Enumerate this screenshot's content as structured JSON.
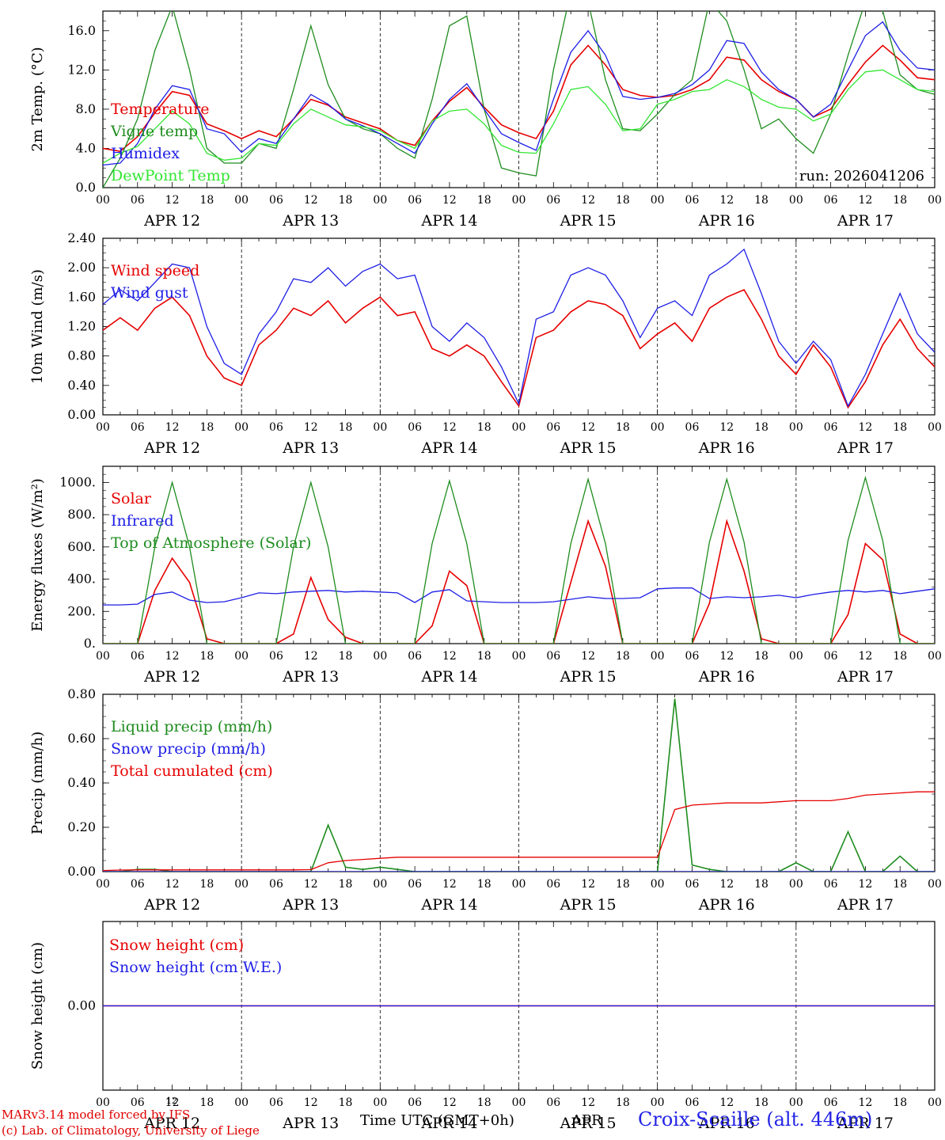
{
  "footer": {
    "model_line": "MARv3.14 model forced by IFS",
    "credit_line": "(c) Lab. of Climatology, University of Liege",
    "superscript": "12",
    "time_label": "Time UTC (GMT+0h)",
    "month_label": "APR",
    "station": "Croix-Scaille (alt. 446m)"
  },
  "colors": {
    "red": "#e60000",
    "green": "#1e8c1e",
    "blue": "#1e1ee6",
    "light_green": "#33e633"
  },
  "x_axis": {
    "start": "2026-04-12 00:00 UTC",
    "end": "2026-04-18 00:00 UTC",
    "hour_ticks": [
      "00",
      "06",
      "12",
      "18"
    ],
    "day_labels": [
      "APR 12",
      "APR 13",
      "APR 14",
      "APR 15",
      "APR 16",
      "APR 17"
    ]
  },
  "chart_data": [
    {
      "type": "line",
      "ylabel": "2m Temp. (°C)",
      "ylim": [
        0,
        18
      ],
      "yticks": [
        "0.0",
        "4.0",
        "8.0",
        "12.0",
        "16.0"
      ],
      "annotation": "run: 2026041206",
      "x_hours": [
        0,
        3,
        6,
        9,
        12,
        15,
        18,
        21,
        24,
        27,
        30,
        33,
        36,
        39,
        42,
        45,
        48,
        51,
        54,
        57,
        60,
        63,
        66,
        69,
        72,
        75,
        78,
        81,
        84,
        87,
        90,
        93,
        96,
        99,
        102,
        105,
        108,
        111,
        114,
        117,
        120,
        123,
        126,
        129,
        132,
        135,
        138,
        141,
        144
      ],
      "series": [
        {
          "name": "Temperature",
          "color": "red",
          "values": [
            4.0,
            3.7,
            5.2,
            7.6,
            9.8,
            9.4,
            6.5,
            5.8,
            5.0,
            5.8,
            5.2,
            7.0,
            9.0,
            8.4,
            7.2,
            6.6,
            6.0,
            4.8,
            4.3,
            6.8,
            8.8,
            10.2,
            8.2,
            6.4,
            5.6,
            5.0,
            7.8,
            12.5,
            14.5,
            12.5,
            10.0,
            9.4,
            9.2,
            9.4,
            10.0,
            11.0,
            13.3,
            13.0,
            11.0,
            9.8,
            9.0,
            7.2,
            8.0,
            10.5,
            12.8,
            14.5,
            13.0,
            11.2,
            11.0
          ]
        },
        {
          "name": "Vigne temp",
          "color": "green",
          "values": [
            0.0,
            3.0,
            7.0,
            14.0,
            18.5,
            12.0,
            4.0,
            2.5,
            2.5,
            4.5,
            4.0,
            10.0,
            16.5,
            10.5,
            7.0,
            6.0,
            5.5,
            4.0,
            3.0,
            9.0,
            16.5,
            17.5,
            8.0,
            2.0,
            1.5,
            1.2,
            12.0,
            20.0,
            19.0,
            11.0,
            6.0,
            5.8,
            7.5,
            9.5,
            11.0,
            19.0,
            17.0,
            12.0,
            6.0,
            7.0,
            5.0,
            3.5,
            7.5,
            13.5,
            19.0,
            18.0,
            11.5,
            10.0,
            9.5
          ]
        },
        {
          "name": "Humidex",
          "color": "blue",
          "values": [
            2.3,
            2.5,
            4.5,
            8.0,
            10.4,
            10.0,
            6.0,
            5.5,
            3.6,
            5.0,
            4.5,
            7.0,
            9.5,
            8.5,
            7.0,
            6.3,
            5.5,
            4.5,
            3.5,
            6.5,
            9.0,
            10.6,
            8.0,
            5.5,
            4.6,
            3.8,
            9.0,
            13.8,
            16.0,
            13.5,
            9.3,
            9.0,
            9.2,
            9.6,
            10.5,
            12.0,
            15.0,
            14.7,
            11.8,
            10.0,
            9.0,
            7.2,
            8.5,
            12.0,
            15.5,
            16.9,
            14.0,
            12.2,
            12.0
          ]
        },
        {
          "name": "DewPoint Temp",
          "color": "light_green",
          "values": [
            2.5,
            3.5,
            4.2,
            6.0,
            7.8,
            6.5,
            3.5,
            2.8,
            3.0,
            4.5,
            4.3,
            6.5,
            8.0,
            7.2,
            6.4,
            6.2,
            5.8,
            4.8,
            4.0,
            6.8,
            7.8,
            8.0,
            6.5,
            4.3,
            3.6,
            3.5,
            6.5,
            10.0,
            10.3,
            8.5,
            5.8,
            6.0,
            8.5,
            9.0,
            9.8,
            10.0,
            11.0,
            10.3,
            9.0,
            8.2,
            8.0,
            6.8,
            7.5,
            10.0,
            11.8,
            12.0,
            11.0,
            10.0,
            9.8
          ]
        }
      ]
    },
    {
      "type": "line",
      "ylabel": "10m Wind (m/s)",
      "ylim": [
        0,
        2.4
      ],
      "yticks": [
        "0.00",
        "0.40",
        "0.80",
        "1.20",
        "1.60",
        "2.00",
        "2.40"
      ],
      "x_hours": [
        0,
        3,
        6,
        9,
        12,
        15,
        18,
        21,
        24,
        27,
        30,
        33,
        36,
        39,
        42,
        45,
        48,
        51,
        54,
        57,
        60,
        63,
        66,
        69,
        72,
        75,
        78,
        81,
        84,
        87,
        90,
        93,
        96,
        99,
        102,
        105,
        108,
        111,
        114,
        117,
        120,
        123,
        126,
        129,
        132,
        135,
        138,
        141,
        144
      ],
      "series": [
        {
          "name": "Wind speed",
          "color": "red",
          "values": [
            1.15,
            1.32,
            1.15,
            1.45,
            1.6,
            1.35,
            0.8,
            0.5,
            0.4,
            0.95,
            1.15,
            1.45,
            1.35,
            1.55,
            1.25,
            1.45,
            1.6,
            1.35,
            1.4,
            0.9,
            0.8,
            0.95,
            0.8,
            0.45,
            0.12,
            1.05,
            1.15,
            1.4,
            1.55,
            1.5,
            1.35,
            0.9,
            1.1,
            1.25,
            1.0,
            1.45,
            1.6,
            1.7,
            1.3,
            0.8,
            0.55,
            0.95,
            0.65,
            0.1,
            0.45,
            0.95,
            1.3,
            0.9,
            0.65
          ]
        },
        {
          "name": "Wind gust",
          "color": "blue",
          "values": [
            1.5,
            1.7,
            1.55,
            1.8,
            2.05,
            2.0,
            1.2,
            0.7,
            0.55,
            1.1,
            1.4,
            1.85,
            1.8,
            2.0,
            1.75,
            1.95,
            2.05,
            1.85,
            1.9,
            1.2,
            1.0,
            1.25,
            1.05,
            0.65,
            0.15,
            1.3,
            1.4,
            1.9,
            2.0,
            1.9,
            1.55,
            1.05,
            1.45,
            1.55,
            1.35,
            1.9,
            2.05,
            2.25,
            1.65,
            1.0,
            0.7,
            1.0,
            0.75,
            0.12,
            0.55,
            1.1,
            1.65,
            1.1,
            0.85
          ]
        }
      ]
    },
    {
      "type": "line",
      "ylabel": "Energy fluxes (W/m²)",
      "ylim": [
        0,
        1100
      ],
      "yticks": [
        "0.",
        "200.",
        "400.",
        "600.",
        "800.",
        "1000."
      ],
      "x_hours": [
        0,
        3,
        6,
        9,
        12,
        15,
        18,
        21,
        24,
        27,
        30,
        33,
        36,
        39,
        42,
        45,
        48,
        51,
        54,
        57,
        60,
        63,
        66,
        69,
        72,
        75,
        78,
        81,
        84,
        87,
        90,
        93,
        96,
        99,
        102,
        105,
        108,
        111,
        114,
        117,
        120,
        123,
        126,
        129,
        132,
        135,
        138,
        141,
        144
      ],
      "series": [
        {
          "name": "Solar",
          "color": "red",
          "values": [
            0,
            0,
            0,
            330,
            530,
            380,
            30,
            0,
            0,
            0,
            0,
            60,
            410,
            150,
            40,
            0,
            0,
            0,
            0,
            110,
            450,
            360,
            0,
            0,
            0,
            0,
            0,
            380,
            760,
            480,
            0,
            0,
            0,
            0,
            0,
            250,
            760,
            450,
            30,
            0,
            0,
            0,
            0,
            180,
            620,
            520,
            60,
            0,
            0
          ]
        },
        {
          "name": "Infrared",
          "color": "blue",
          "values": [
            240,
            240,
            245,
            305,
            320,
            270,
            255,
            260,
            285,
            315,
            310,
            320,
            325,
            330,
            320,
            325,
            320,
            315,
            255,
            320,
            335,
            265,
            260,
            255,
            255,
            255,
            260,
            275,
            290,
            280,
            280,
            285,
            340,
            345,
            345,
            280,
            290,
            285,
            290,
            300,
            285,
            305,
            320,
            330,
            320,
            330,
            310,
            325,
            340
          ]
        },
        {
          "name": "Top of Atmosphere (Solar)",
          "color": "green",
          "values": [
            0,
            0,
            0,
            600,
            1000,
            600,
            0,
            0,
            0,
            0,
            0,
            600,
            1000,
            600,
            0,
            0,
            0,
            0,
            0,
            620,
            1010,
            620,
            0,
            0,
            0,
            0,
            0,
            620,
            1020,
            620,
            0,
            0,
            0,
            0,
            0,
            630,
            1020,
            630,
            0,
            0,
            0,
            0,
            0,
            640,
            1030,
            640,
            0,
            0,
            0
          ]
        }
      ]
    },
    {
      "type": "line",
      "ylabel": "Precip (mm/h)",
      "ylim": [
        0,
        0.8
      ],
      "yticks": [
        "0.00",
        "0.20",
        "0.40",
        "0.60",
        "0.80"
      ],
      "x_hours": [
        0,
        3,
        6,
        9,
        12,
        15,
        18,
        21,
        24,
        27,
        30,
        33,
        36,
        39,
        42,
        45,
        48,
        51,
        54,
        57,
        60,
        63,
        66,
        69,
        72,
        75,
        78,
        81,
        84,
        87,
        90,
        93,
        96,
        99,
        102,
        105,
        108,
        111,
        114,
        117,
        120,
        123,
        126,
        129,
        132,
        135,
        138,
        141,
        144
      ],
      "series": [
        {
          "name": "Liquid precip (mm/h)",
          "color": "green",
          "values": [
            0,
            0,
            0.01,
            0.01,
            0,
            0,
            0,
            0,
            0,
            0,
            0,
            0,
            0,
            0.21,
            0.02,
            0.01,
            0.02,
            0.01,
            0,
            0,
            0,
            0,
            0,
            0,
            0,
            0,
            0,
            0,
            0,
            0,
            0,
            0,
            0,
            0.78,
            0.03,
            0.01,
            0,
            0,
            0,
            0,
            0.04,
            0,
            0,
            0.18,
            0,
            0,
            0.07,
            0,
            0
          ]
        },
        {
          "name": "Snow precip (mm/h)",
          "color": "blue",
          "values": [
            0,
            0,
            0,
            0,
            0,
            0,
            0,
            0,
            0,
            0,
            0,
            0,
            0,
            0,
            0,
            0,
            0,
            0,
            0,
            0,
            0,
            0,
            0,
            0,
            0,
            0,
            0,
            0,
            0,
            0,
            0,
            0,
            0,
            0,
            0,
            0,
            0,
            0,
            0,
            0,
            0,
            0,
            0,
            0,
            0,
            0,
            0,
            0,
            0
          ]
        },
        {
          "name": "Total cumulated (cm)",
          "color": "red",
          "values": [
            0.005,
            0.007,
            0.008,
            0.008,
            0.008,
            0.008,
            0.008,
            0.008,
            0.008,
            0.008,
            0.008,
            0.008,
            0.009,
            0.04,
            0.05,
            0.055,
            0.06,
            0.065,
            0.065,
            0.065,
            0.065,
            0.065,
            0.065,
            0.065,
            0.065,
            0.065,
            0.065,
            0.065,
            0.065,
            0.065,
            0.065,
            0.065,
            0.065,
            0.28,
            0.3,
            0.305,
            0.31,
            0.31,
            0.31,
            0.315,
            0.32,
            0.32,
            0.32,
            0.33,
            0.345,
            0.35,
            0.355,
            0.36,
            0.36
          ]
        }
      ]
    },
    {
      "type": "line",
      "ylabel": "Snow height (cm)",
      "ylim": [
        -1,
        1
      ],
      "yticks": [
        "0.00"
      ],
      "x_hours": [
        0,
        144
      ],
      "series": [
        {
          "name": "Snow height (cm)",
          "color": "red",
          "values": [
            0,
            0
          ]
        },
        {
          "name": "Snow height (cm W.E.)",
          "color": "blue",
          "values": [
            0,
            0
          ]
        }
      ]
    }
  ]
}
